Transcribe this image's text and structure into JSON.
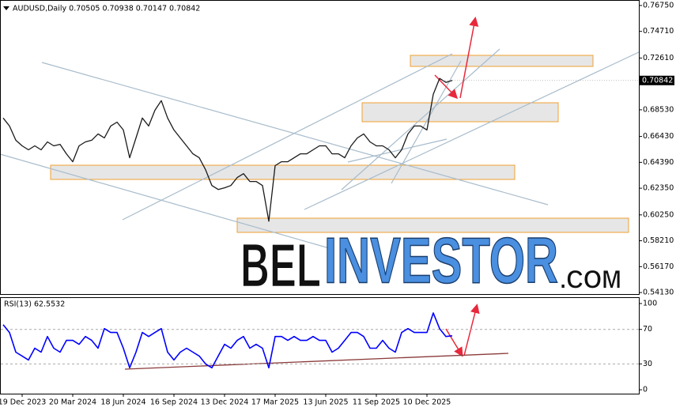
{
  "chart_data": [
    {
      "type": "line",
      "title": "AUDUSD,Daily  0.70505 0.70938 0.70147 0.70842",
      "categories": [
        null,
        null,
        null,
        "19 Dec 2023",
        null,
        null,
        null,
        null,
        null,
        null,
        null,
        "20 Mar 2024",
        null,
        null,
        null,
        null,
        null,
        null,
        null,
        "18 Jun 2024",
        null,
        null,
        null,
        null,
        null,
        null,
        null,
        "16 Sep 2024",
        null,
        null,
        null,
        null,
        null,
        null,
        null,
        "13 Dec 2024",
        null,
        null,
        null,
        null,
        null,
        null,
        null,
        "17 Mar 2025",
        null,
        null,
        null,
        null,
        null,
        null,
        null,
        "13 Jun 2025",
        null,
        null,
        null,
        null,
        null,
        null,
        null,
        "11 Sep 2025",
        null,
        null,
        null,
        null,
        null,
        null,
        null,
        "10 Dec 2025",
        null,
        null,
        null,
        null
      ],
      "series": [
        {
          "color": "#1a1a1a",
          "values": [
            0.6788,
            0.6725,
            0.6613,
            0.6569,
            0.6538,
            0.6569,
            0.6538,
            0.66,
            0.6569,
            0.6581,
            0.6506,
            0.6444,
            0.6569,
            0.66,
            0.6613,
            0.6663,
            0.6631,
            0.6725,
            0.6756,
            0.6694,
            0.6475,
            0.6631,
            0.6788,
            0.6725,
            0.685,
            0.6925,
            0.6788,
            0.6694,
            0.6631,
            0.6569,
            0.6506,
            0.6475,
            0.6381,
            0.6256,
            0.6225,
            0.6238,
            0.6256,
            0.6319,
            0.635,
            0.6288,
            0.6288,
            0.6256,
            0.5975,
            0.6413,
            0.6444,
            0.6444,
            0.6475,
            0.6506,
            0.6506,
            0.6538,
            0.6569,
            0.6569,
            0.6506,
            0.6506,
            0.6475,
            0.6569,
            0.6631,
            0.6663,
            0.66,
            0.6569,
            0.6569,
            0.6538,
            0.6475,
            0.6538,
            0.6663,
            0.6725,
            0.6725,
            0.6694,
            0.6975,
            0.71,
            0.7069,
            0.7084
          ]
        }
      ],
      "ylim": [
        0.5401,
        0.7712
      ],
      "yticks": [
        {
          "value": 0.7675,
          "label": "0.76750"
        },
        {
          "value": 0.7471,
          "label": "0.74710"
        },
        {
          "value": 0.7261,
          "label": "0.72610"
        },
        {
          "value": 0.6853,
          "label": "0.68530"
        },
        {
          "value": 0.6643,
          "label": "0.66430"
        },
        {
          "value": 0.6439,
          "label": "0.64390"
        },
        {
          "value": 0.6235,
          "label": "0.62350"
        },
        {
          "value": 0.6025,
          "label": "0.60250"
        },
        {
          "value": 0.5821,
          "label": "0.58210"
        },
        {
          "value": 0.5617,
          "label": "0.56170"
        },
        {
          "value": 0.5413,
          "label": "0.54130"
        }
      ],
      "last_price": {
        "value": 0.70842,
        "label": "0.70842"
      }
    },
    {
      "type": "line",
      "title": "RSI(13) 62.5532",
      "series": [
        {
          "color": "#0000ff",
          "values": [
            75.5,
            66.4,
            43.6,
            39.1,
            34.5,
            48.2,
            43.6,
            61.8,
            48.2,
            43.6,
            57.3,
            57.3,
            52.7,
            61.8,
            57.3,
            48.2,
            70.9,
            66.4,
            66.4,
            48.2,
            25.5,
            43.6,
            66.4,
            61.8,
            66.4,
            70.9,
            43.6,
            34.5,
            43.6,
            48.2,
            43.6,
            39.1,
            30.0,
            25.5,
            39.1,
            52.7,
            48.2,
            57.3,
            61.8,
            48.2,
            52.7,
            48.2,
            25.5,
            61.8,
            61.8,
            57.3,
            61.8,
            57.3,
            57.3,
            61.8,
            57.3,
            57.3,
            43.6,
            48.2,
            57.3,
            66.4,
            66.4,
            61.8,
            48.2,
            48.2,
            57.3,
            48.2,
            43.6,
            66.4,
            70.9,
            66.4,
            66.4,
            66.4,
            89.1,
            70.9,
            61.8,
            62.6
          ]
        }
      ],
      "ylim": [
        -4.5,
        106.4
      ],
      "yticks": [
        100,
        70,
        30,
        0
      ],
      "levels": [
        70,
        30
      ]
    }
  ],
  "watermark": {
    "brand": "BEL",
    "highlight": "INVESTOR",
    "suffix": ".COM"
  }
}
